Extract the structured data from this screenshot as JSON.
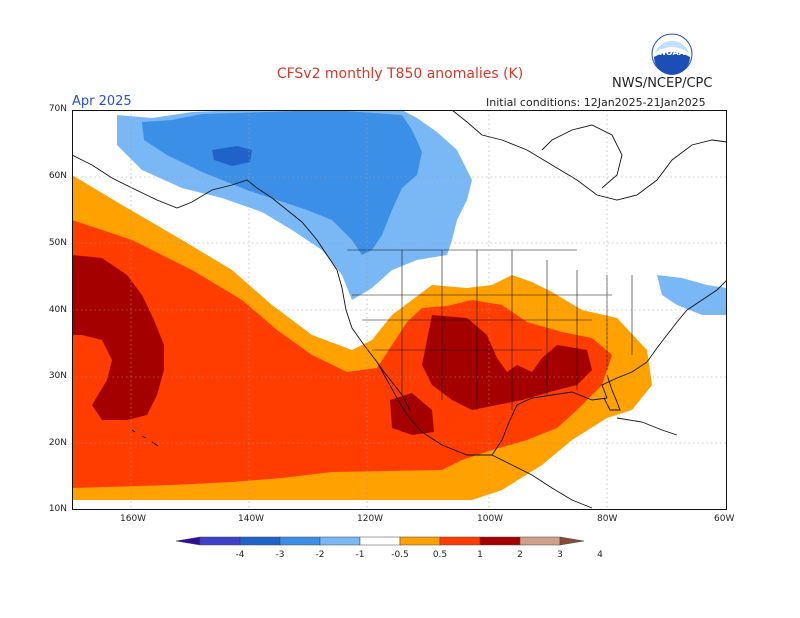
{
  "header": {
    "title": "CFSv2 monthly T850 anomalies (K)",
    "agency": "NWS/NCEP/CPC",
    "month": "Apr 2025",
    "initial_conditions": "Initial conditions: 12Jan2025-21Jan2025",
    "logo_text": "NOAA"
  },
  "axes": {
    "lat_labels": [
      "70N",
      "60N",
      "50N",
      "40N",
      "30N",
      "20N",
      "10N"
    ],
    "lon_labels": [
      "160W",
      "140W",
      "120W",
      "100W",
      "80W",
      "60W"
    ],
    "lat_range": [
      10,
      70
    ],
    "lon_range": [
      -171,
      -60
    ]
  },
  "colorbar": {
    "ticks": [
      "-4",
      "-3",
      "-2",
      "-1",
      "-0.5",
      "0.5",
      "1",
      "2",
      "3",
      "4"
    ],
    "colors": [
      "#2d0f9b",
      "#3f3fc8",
      "#1f63c8",
      "#3c8fe6",
      "#7ab8f5",
      "#ffffff",
      "#ffa100",
      "#ff3d00",
      "#a50000",
      "#cfa08c",
      "#8a4a38"
    ]
  },
  "colors": {
    "coast": "#111111",
    "state": "#111111",
    "grid": "#9a9a9a",
    "below_1": "#7ab8f5",
    "below_2": "#3c8fe6",
    "below_3": "#1f63c8",
    "above_1": "#ffa100",
    "above_2": "#ff3d00",
    "above_3": "#a50000"
  }
}
